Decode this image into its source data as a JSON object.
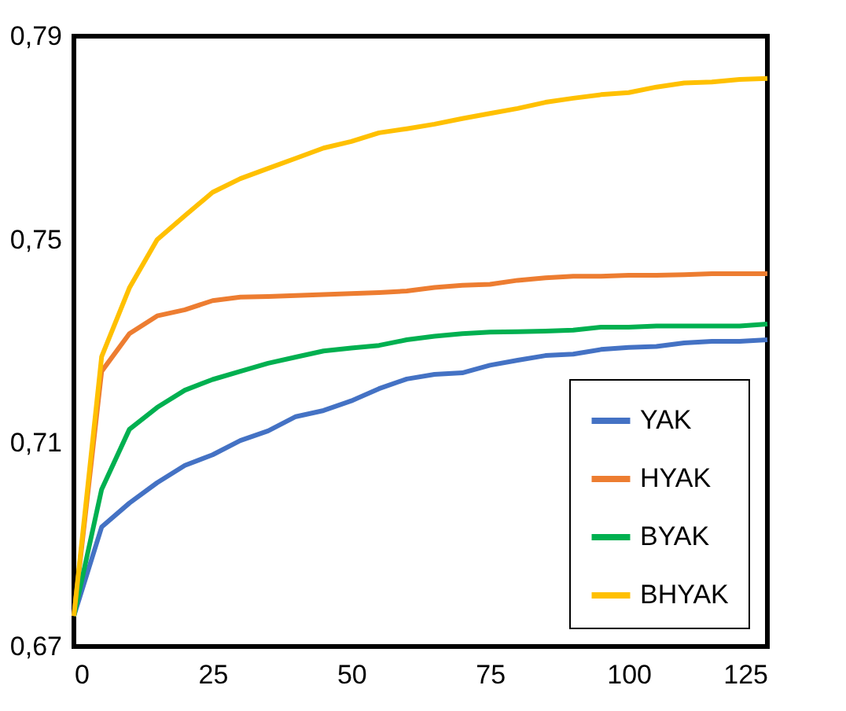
{
  "chart_data": {
    "type": "line",
    "x": [
      0,
      5,
      10,
      15,
      20,
      25,
      30,
      35,
      40,
      45,
      50,
      55,
      60,
      65,
      70,
      75,
      80,
      85,
      90,
      95,
      100,
      105,
      110,
      115,
      120,
      125
    ],
    "series": [
      {
        "name": "YAK",
        "color": "#4472c4",
        "values": [
          0.676,
          0.6935,
          0.6982,
          0.7022,
          0.7056,
          0.7077,
          0.7105,
          0.7124,
          0.7152,
          0.7164,
          0.7183,
          0.7207,
          0.7226,
          0.7235,
          0.7238,
          0.7253,
          0.7263,
          0.7272,
          0.7275,
          0.7284,
          0.7288,
          0.729,
          0.7297,
          0.73,
          0.73,
          0.7303
        ]
      },
      {
        "name": "HYAK",
        "color": "#ed7d31",
        "values": [
          0.676,
          0.7241,
          0.7315,
          0.735,
          0.7362,
          0.738,
          0.7387,
          0.7388,
          0.739,
          0.7392,
          0.7394,
          0.7396,
          0.7399,
          0.7406,
          0.741,
          0.7412,
          0.742,
          0.7425,
          0.7428,
          0.7428,
          0.743,
          0.743,
          0.7431,
          0.7433,
          0.7433,
          0.7433
        ]
      },
      {
        "name": "BYAK",
        "color": "#00b050",
        "values": [
          0.676,
          0.7009,
          0.7127,
          0.717,
          0.7204,
          0.7225,
          0.7241,
          0.7257,
          0.7269,
          0.7281,
          0.7287,
          0.7292,
          0.7303,
          0.731,
          0.7315,
          0.7318,
          0.7319,
          0.732,
          0.7322,
          0.7328,
          0.7328,
          0.733,
          0.733,
          0.733,
          0.733,
          0.7334
        ]
      },
      {
        "name": "BHYAK",
        "color": "#ffc000",
        "values": [
          0.676,
          0.727,
          0.7405,
          0.75,
          0.7547,
          0.7593,
          0.762,
          0.764,
          0.766,
          0.768,
          0.7693,
          0.771,
          0.7718,
          0.7727,
          0.7738,
          0.7748,
          0.7758,
          0.777,
          0.7778,
          0.7785,
          0.7789,
          0.78,
          0.7808,
          0.781,
          0.7815,
          0.7817
        ]
      }
    ],
    "xlim": [
      0,
      125
    ],
    "xticks": [
      0,
      25,
      50,
      75,
      100,
      125
    ],
    "ylim": [
      0.67,
      0.79
    ],
    "yticks": [
      {
        "value": 0.67,
        "label": "0,67"
      },
      {
        "value": 0.71,
        "label": "0,71"
      },
      {
        "value": 0.75,
        "label": "0,75"
      },
      {
        "value": 0.79,
        "label": "0,79"
      }
    ],
    "grid": false,
    "legend": "bottom right",
    "marker": "none",
    "line_style": "solid"
  }
}
